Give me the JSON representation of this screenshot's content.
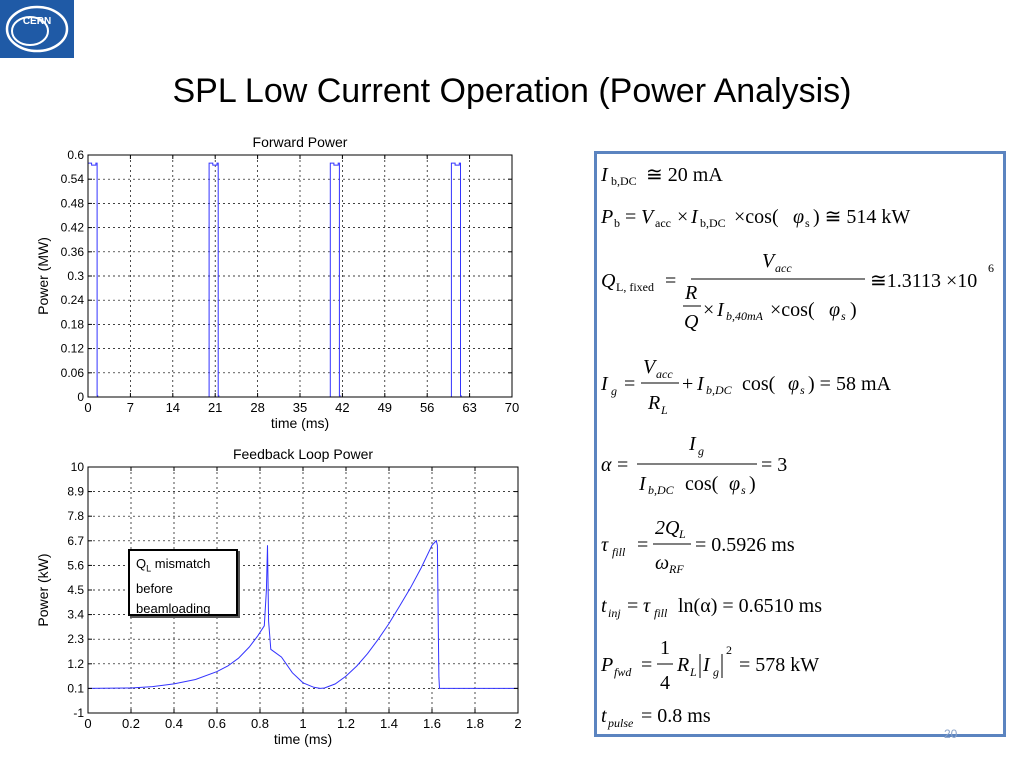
{
  "title": "SPL Low Current Operation (Power Analysis)",
  "logo": {
    "text": "CERN",
    "icon": "cern-logo"
  },
  "slide_number": "20",
  "annotation": {
    "q": "Q",
    "sub": "L",
    "line1": " mismatch",
    "line2": "before",
    "line3": "beamloading"
  },
  "colors": {
    "series": "#3333ff",
    "box_border": "#5b84c0",
    "logo_blue": "#1f5aa6"
  },
  "chart_data": [
    {
      "type": "line",
      "title": "Forward Power",
      "xlabel": "time (ms)",
      "ylabel": "Power (MW)",
      "xlim": [
        0,
        70
      ],
      "ylim": [
        0,
        0.6
      ],
      "xticks": [
        0,
        7,
        14,
        21,
        28,
        35,
        42,
        49,
        56,
        63,
        70
      ],
      "yticks": [
        0,
        0.06,
        0.12,
        0.18,
        0.24,
        0.3,
        0.36,
        0.42,
        0.48,
        0.54,
        0.6
      ],
      "xtick_labels": [
        "0",
        "7",
        "14",
        "21",
        "28",
        "35",
        "42",
        "49",
        "56",
        "63",
        "70"
      ],
      "ytick_labels": [
        "0",
        "0.06",
        "0.12",
        "0.18",
        "0.24",
        "0.3",
        "0.36",
        "0.42",
        "0.48",
        "0.54",
        "0.6"
      ],
      "grid": true,
      "series": [
        {
          "x": [
            0,
            0,
            0.6,
            0.6,
            1.3,
            1.3,
            1.5,
            1.5,
            1.6,
            1.6,
            20,
            20,
            20.6,
            20.6,
            21.3,
            21.3,
            21.5,
            21.5,
            21.6,
            21.6,
            40,
            40,
            40.6,
            40.6,
            41.3,
            41.3,
            41.5,
            41.5,
            41.6,
            41.6,
            60,
            60,
            60.6,
            60.6,
            61.3,
            61.3,
            61.5,
            61.5,
            61.6,
            61.6,
            70
          ],
          "y": [
            0,
            0.58,
            0.58,
            0.575,
            0.575,
            0.58,
            0.58,
            0.003,
            0.003,
            0,
            0,
            0.58,
            0.58,
            0.575,
            0.575,
            0.58,
            0.58,
            0.003,
            0.003,
            0,
            0,
            0.58,
            0.58,
            0.575,
            0.575,
            0.58,
            0.58,
            0.003,
            0.003,
            0,
            0,
            0.58,
            0.58,
            0.575,
            0.575,
            0.58,
            0.58,
            0.003,
            0.003,
            0,
            0
          ]
        }
      ]
    },
    {
      "type": "line",
      "title": "Feedback Loop Power",
      "xlabel": "time (ms)",
      "ylabel": "Power (kW)",
      "xlim": [
        0,
        2
      ],
      "ylim": [
        -1,
        10
      ],
      "xticks": [
        0,
        0.2,
        0.4,
        0.6,
        0.8,
        1,
        1.2,
        1.4,
        1.6,
        1.8,
        2
      ],
      "yticks": [
        -1,
        0.1,
        1.2,
        2.3,
        3.4,
        4.5,
        5.6,
        6.7,
        7.8,
        8.9,
        10
      ],
      "xtick_labels": [
        "0",
        "0.2",
        "0.4",
        "0.6",
        "0.8",
        "1",
        "1.2",
        "1.4",
        "1.6",
        "1.8",
        "2"
      ],
      "ytick_labels": [
        "-1",
        "0.1",
        "1.2",
        "2.3",
        "3.4",
        "4.5",
        "5.6",
        "6.7",
        "7.8",
        "8.9",
        "10"
      ],
      "grid": true,
      "series": [
        {
          "x": [
            0,
            0.2,
            0.3,
            0.4,
            0.5,
            0.6,
            0.65,
            0.7,
            0.75,
            0.79,
            0.82,
            0.83,
            0.835,
            0.84,
            0.85,
            0.9,
            0.95,
            1.0,
            1.05,
            1.08,
            1.1,
            1.15,
            1.2,
            1.25,
            1.3,
            1.35,
            1.4,
            1.45,
            1.5,
            1.55,
            1.6,
            1.62,
            1.625,
            1.63,
            1.632,
            1.635,
            1.64,
            2
          ],
          "y": [
            0.1,
            0.12,
            0.18,
            0.3,
            0.5,
            0.85,
            1.1,
            1.45,
            1.95,
            2.45,
            2.9,
            4.5,
            6.5,
            3.1,
            1.85,
            1.5,
            0.8,
            0.35,
            0.15,
            0.1,
            0.12,
            0.3,
            0.65,
            1.1,
            1.65,
            2.3,
            3.0,
            3.8,
            4.6,
            5.5,
            6.5,
            6.7,
            6.5,
            2.4,
            0.6,
            0.1,
            0.1,
            0.1
          ]
        }
      ]
    }
  ],
  "equations": {
    "ib_dc": {
      "lhs": "I",
      "sub": "b,DC",
      "rhs": "≅ 20  mA"
    },
    "pb": {
      "p": "P",
      "p_sub": "b",
      "eq": "=",
      "v": "V",
      "v_sub": "acc",
      "times1": "×",
      "i": "I",
      "i_sub": "b,DC",
      "rhs": "×cos(",
      "phi": "φ",
      "phi_sub": "s",
      "end": ") ≅ 514  kW"
    },
    "ql": {
      "lhs": "Q",
      "sub": "L, fixed",
      "eq": "=",
      "num": "V",
      "num_sub": "acc",
      "r": "R",
      "q": "Q",
      "times": "×",
      "i": "I",
      "i_sub": "b,40mA",
      "cos": "×cos(",
      "phi": "φ",
      "phi_sub": "s",
      "close": ")",
      "rhs": "≅1.3113  ×10",
      "exp": "6"
    },
    "ig": {
      "lhs": "I",
      "lhs_sub": "g",
      "eq": "=",
      "num": "V",
      "num_sub": "acc",
      "den": "R",
      "den_sub": "L",
      "plus": "+",
      "i": "I",
      "i_sub": "b,DC",
      "cos": "cos(",
      "phi": "φ",
      "phi_sub": "s",
      "rhs": ") = 58  mA"
    },
    "alpha": {
      "lhs": "α",
      "eq": "=",
      "num": "I",
      "num_sub": "g",
      "den_i": "I",
      "den_sub": "b,DC",
      "den_cos": "cos(",
      "phi": "φ",
      "phi_sub": "s",
      "close": ")",
      "rhs": "= 3"
    },
    "tau": {
      "lhs": "τ",
      "lhs_sub": "fill",
      "eq": "=",
      "num": "2Q",
      "num_sub": "L",
      "den": "ω",
      "den_sub": "RF",
      "rhs": "= 0.5926  ms"
    },
    "tinj": {
      "lhs": "t",
      "lhs_sub": "inj",
      "eq": "=",
      "tau": "τ",
      "tau_sub": "fill",
      "rhs": "ln(α) = 0.6510  ms"
    },
    "pfwd": {
      "lhs": "P",
      "lhs_sub": "fwd",
      "eq": "=",
      "num": "1",
      "den": "4",
      "r": "R",
      "r_sub": "L",
      "i": "I",
      "i_sub": "g",
      "exp": "2",
      "rhs": "= 578  kW"
    },
    "tpulse": {
      "lhs": "t",
      "lhs_sub": "pulse",
      "rhs": "= 0.8  ms"
    }
  }
}
